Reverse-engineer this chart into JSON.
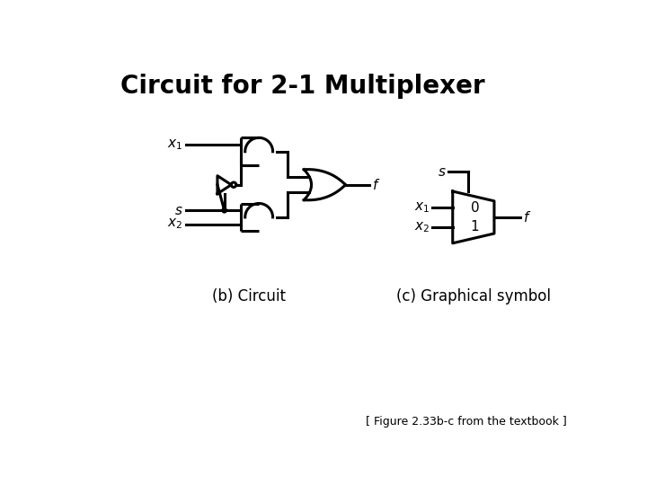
{
  "title": "Circuit for 2-1 Multiplexer",
  "background_color": "#ffffff",
  "line_color": "#000000",
  "line_width": 2.2,
  "text_color": "#000000",
  "caption_left": "(b) Circuit",
  "caption_right": "(c) Graphical symbol",
  "footer": "[ Figure 2.33b-c from the textbook ]"
}
